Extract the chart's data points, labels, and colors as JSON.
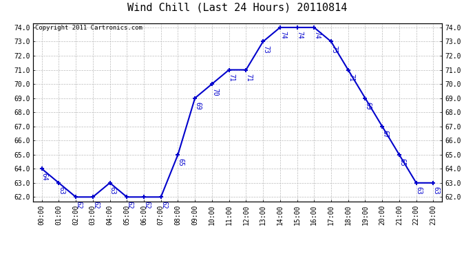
{
  "title": "Wind Chill (Last 24 Hours) 20110814",
  "copyright": "Copyright 2011 Cartronics.com",
  "hours": [
    0,
    1,
    2,
    3,
    4,
    5,
    6,
    7,
    8,
    9,
    10,
    11,
    12,
    13,
    14,
    15,
    16,
    17,
    18,
    19,
    20,
    21,
    22,
    23
  ],
  "values": [
    64,
    63,
    62,
    62,
    63,
    62,
    62,
    62,
    65,
    69,
    70,
    71,
    71,
    73,
    74,
    74,
    74,
    73,
    71,
    69,
    67,
    65,
    63,
    63
  ],
  "ylim_min": 62.0,
  "ylim_max": 74.0,
  "line_color": "#0000cc",
  "marker": "+",
  "grid_color": "#bbbbbb",
  "bg_color": "white",
  "title_fontsize": 11,
  "label_fontsize": 7,
  "annotation_fontsize": 7,
  "annotation_color": "#0000cc",
  "tick_label_color": "black",
  "yticks": [
    62.0,
    63.0,
    64.0,
    65.0,
    66.0,
    67.0,
    68.0,
    69.0,
    70.0,
    71.0,
    72.0,
    73.0,
    74.0
  ]
}
